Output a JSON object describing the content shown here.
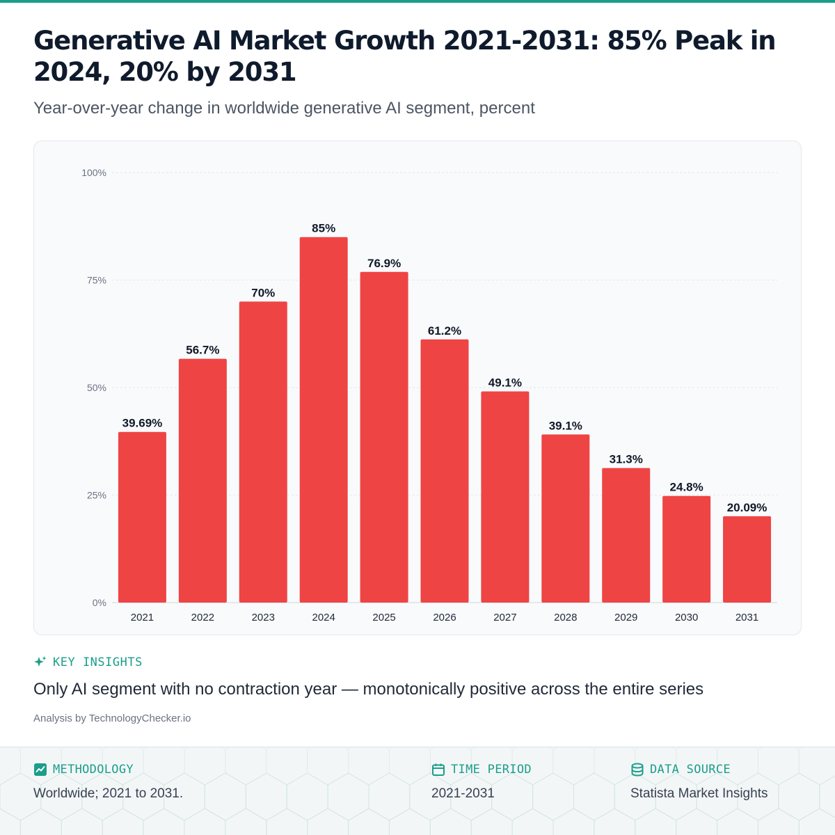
{
  "header": {
    "title": "Generative AI Market Growth 2021-2031: 85% Peak in 2024, 20% by 2031",
    "subtitle": "Year-over-year change in worldwide generative AI segment, percent"
  },
  "colors": {
    "accent": "#1a9e8a",
    "bar": "#ef4444",
    "text": "#0f1b2d"
  },
  "chart_data": {
    "type": "bar",
    "categories": [
      "2021",
      "2022",
      "2023",
      "2024",
      "2025",
      "2026",
      "2027",
      "2028",
      "2029",
      "2030",
      "2031"
    ],
    "values": [
      39.69,
      56.7,
      70,
      85,
      76.9,
      61.2,
      49.1,
      39.1,
      31.3,
      24.8,
      20.09
    ],
    "value_labels": [
      "39.69%",
      "56.7%",
      "70%",
      "85%",
      "76.9%",
      "61.2%",
      "49.1%",
      "39.1%",
      "31.3%",
      "24.8%",
      "20.09%"
    ],
    "ylim": [
      0,
      100
    ],
    "y_ticks": [
      0,
      25,
      50,
      75,
      100
    ],
    "y_tick_labels": [
      "0%",
      "25%",
      "50%",
      "75%",
      "100%"
    ],
    "grid": true,
    "legend": "none"
  },
  "insights": {
    "label": "KEY INSIGHTS",
    "icon": "sparkle-icon",
    "text": "Only AI segment with no contraction year — monotonically positive across the entire series",
    "credit": "Analysis by TechnologyChecker.io"
  },
  "footer": {
    "methodology": {
      "label": "METHODOLOGY",
      "icon": "chart-icon",
      "value": "Worldwide; 2021 to 2031."
    },
    "time_period": {
      "label": "TIME PERIOD",
      "icon": "calendar-icon",
      "value": "2021-2031"
    },
    "data_source": {
      "label": "DATA SOURCE",
      "icon": "database-icon",
      "value": "Statista Market Insights"
    }
  }
}
